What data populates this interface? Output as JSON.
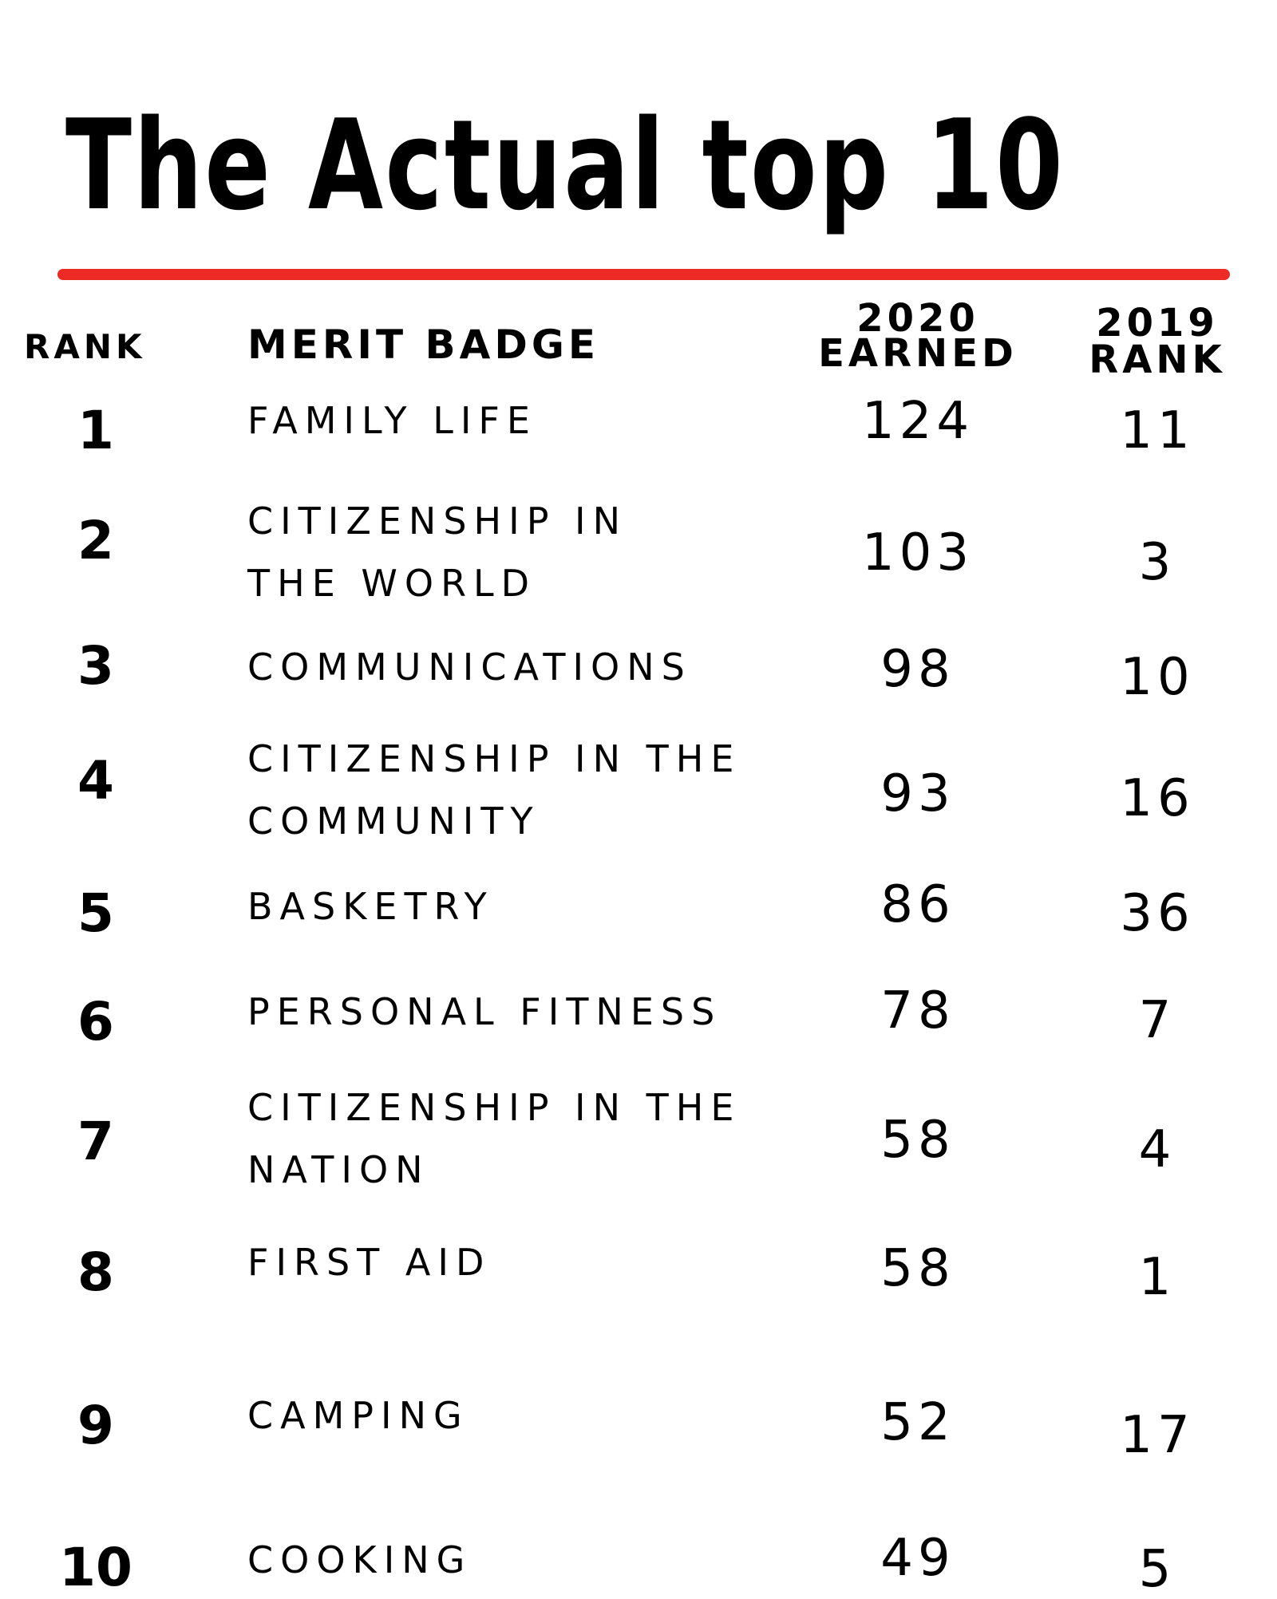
{
  "title": "The Actual top 10",
  "colors": {
    "accent_rule": "#ee2a24",
    "text": "#000000",
    "background": "#ffffff"
  },
  "headers": {
    "rank": "RANK",
    "merit_badge": "MERIT BADGE",
    "earned_line1": "2020",
    "earned_line2": "EARNED",
    "prev_line1": "2019",
    "prev_line2": "RANK"
  },
  "rows": [
    {
      "rank": "1",
      "badge_line1": "FAMILY LIFE",
      "badge_line2": "",
      "earned": "124",
      "prev": "11"
    },
    {
      "rank": "2",
      "badge_line1": "CITIZENSHIP IN",
      "badge_line2": "THE WORLD",
      "earned": "103",
      "prev": "3"
    },
    {
      "rank": "3",
      "badge_line1": "COMMUNICATIONS",
      "badge_line2": "",
      "earned": "98",
      "prev": "10"
    },
    {
      "rank": "4",
      "badge_line1": "CITIZENSHIP IN THE",
      "badge_line2": "COMMUNITY",
      "earned": "93",
      "prev": "16"
    },
    {
      "rank": "5",
      "badge_line1": "BASKETRY",
      "badge_line2": "",
      "earned": "86",
      "prev": "36"
    },
    {
      "rank": "6",
      "badge_line1": "PERSONAL FITNESS",
      "badge_line2": "",
      "earned": "78",
      "prev": "7"
    },
    {
      "rank": "7",
      "badge_line1": "CITIZENSHIP IN THE",
      "badge_line2": "NATION",
      "earned": "58",
      "prev": "4"
    },
    {
      "rank": "8",
      "badge_line1": "FIRST AID",
      "badge_line2": "",
      "earned": "58",
      "prev": "1"
    },
    {
      "rank": "9",
      "badge_line1": "CAMPING",
      "badge_line2": "",
      "earned": "52",
      "prev": "17"
    },
    {
      "rank": "10",
      "badge_line1": "COOKING",
      "badge_line2": "",
      "earned": "49",
      "prev": "5"
    }
  ]
}
